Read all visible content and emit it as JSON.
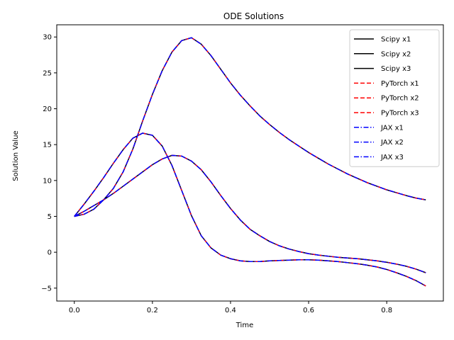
{
  "chart_data": {
    "type": "line",
    "title": "ODE Solutions",
    "xlabel": "Time",
    "ylabel": "Solution Value",
    "xlim": [
      -0.045,
      0.945
    ],
    "ylim": [
      -6.8,
      31.7
    ],
    "xticks": [
      0.0,
      0.2,
      0.4,
      0.6,
      0.8
    ],
    "xtick_labels": [
      "0.0",
      "0.2",
      "0.4",
      "0.6",
      "0.8"
    ],
    "yticks": [
      -5,
      0,
      5,
      10,
      15,
      20,
      25,
      30
    ],
    "ytick_labels": [
      "−5",
      "0",
      "5",
      "10",
      "15",
      "20",
      "25",
      "30"
    ],
    "grid": false,
    "legend_position": "top-right",
    "x": [
      0.0,
      0.025,
      0.05,
      0.075,
      0.1,
      0.125,
      0.15,
      0.175,
      0.2,
      0.225,
      0.25,
      0.275,
      0.3,
      0.325,
      0.35,
      0.375,
      0.4,
      0.425,
      0.45,
      0.475,
      0.5,
      0.525,
      0.55,
      0.575,
      0.6,
      0.625,
      0.65,
      0.675,
      0.7,
      0.725,
      0.75,
      0.775,
      0.8,
      0.825,
      0.85,
      0.875,
      0.9
    ],
    "solutions": [
      {
        "values": [
          5.0,
          6.7,
          8.5,
          10.4,
          12.4,
          14.3,
          15.9,
          16.6,
          16.3,
          14.8,
          12.1,
          8.6,
          5.1,
          2.3,
          0.6,
          -0.4,
          -0.9,
          -1.2,
          -1.3,
          -1.3,
          -1.2,
          -1.15,
          -1.1,
          -1.05,
          -1.05,
          -1.1,
          -1.2,
          -1.3,
          -1.45,
          -1.6,
          -1.8,
          -2.05,
          -2.4,
          -2.85,
          -3.35,
          -3.95,
          -4.7
        ]
      },
      {
        "values": [
          5.0,
          5.3,
          6.0,
          7.3,
          8.9,
          11.2,
          14.4,
          18.3,
          22.0,
          25.3,
          27.9,
          29.5,
          29.9,
          29.0,
          27.4,
          25.5,
          23.6,
          21.9,
          20.4,
          19.0,
          17.8,
          16.7,
          15.7,
          14.8,
          13.9,
          13.1,
          12.3,
          11.6,
          10.9,
          10.3,
          9.7,
          9.2,
          8.7,
          8.3,
          7.9,
          7.55,
          7.3
        ]
      },
      {
        "values": [
          5.0,
          5.7,
          6.5,
          7.3,
          8.2,
          9.2,
          10.2,
          11.2,
          12.2,
          13.0,
          13.5,
          13.4,
          12.7,
          11.5,
          9.8,
          7.9,
          6.1,
          4.5,
          3.2,
          2.3,
          1.5,
          0.9,
          0.45,
          0.1,
          -0.2,
          -0.4,
          -0.55,
          -0.7,
          -0.8,
          -0.9,
          -1.05,
          -1.2,
          -1.4,
          -1.65,
          -1.95,
          -2.35,
          -2.85
        ]
      }
    ],
    "methods": [
      {
        "name": "Scipy",
        "color": "#000000",
        "dash": "solid"
      },
      {
        "name": "PyTorch",
        "color": "#ff0000",
        "dash": "dashed"
      },
      {
        "name": "JAX",
        "color": "#0000ff",
        "dash": "dashdot"
      }
    ],
    "legend": [
      {
        "label": "Scipy x1",
        "method": 0
      },
      {
        "label": "Scipy x2",
        "method": 0
      },
      {
        "label": "Scipy x3",
        "method": 0
      },
      {
        "label": "PyTorch x1",
        "method": 1
      },
      {
        "label": "PyTorch x2",
        "method": 1
      },
      {
        "label": "PyTorch x3",
        "method": 1
      },
      {
        "label": "JAX x1",
        "method": 2
      },
      {
        "label": "JAX x2",
        "method": 2
      },
      {
        "label": "JAX x3",
        "method": 2
      }
    ]
  }
}
